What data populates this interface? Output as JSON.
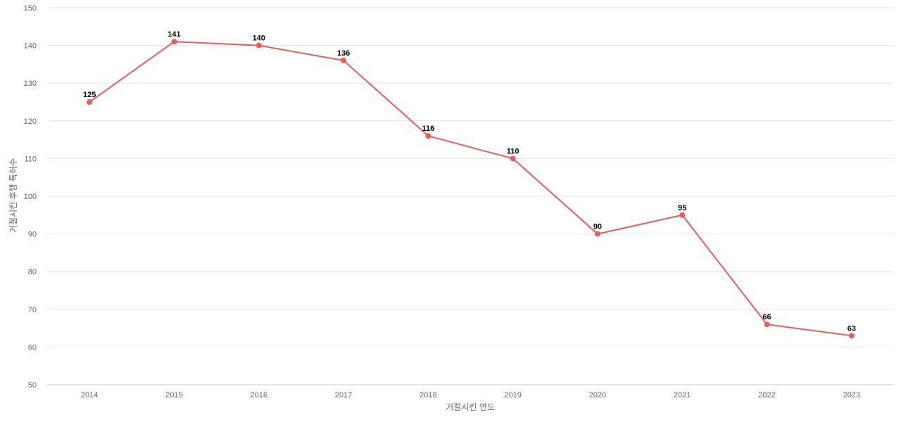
{
  "chart_data": {
    "type": "line",
    "title": "",
    "xlabel": "거절시킨 연도",
    "ylabel": "거절시킨 후행 특허수",
    "categories": [
      "2014",
      "2015",
      "2016",
      "2017",
      "2018",
      "2019",
      "2020",
      "2021",
      "2022",
      "2023"
    ],
    "series": [
      {
        "values": [
          125,
          141,
          140,
          136,
          116,
          110,
          90,
          95,
          66,
          63
        ],
        "color": "#e85c5c"
      }
    ],
    "ylim": [
      50,
      150
    ],
    "yticks": [
      50,
      60,
      70,
      80,
      90,
      100,
      110,
      120,
      130,
      140,
      150
    ],
    "grid": true,
    "legend": "none",
    "data_labels": true
  }
}
